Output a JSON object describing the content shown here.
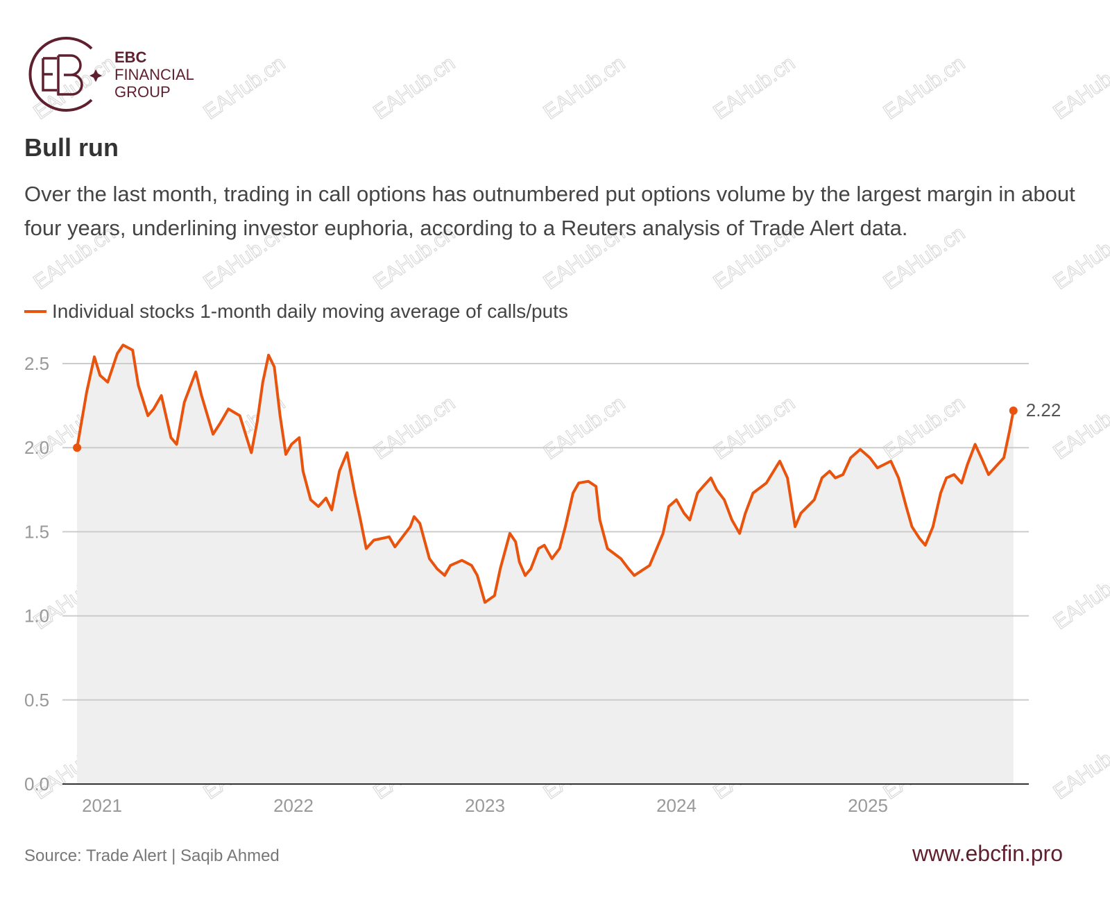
{
  "logo": {
    "line1": "EBC",
    "line2": "FINANCIAL",
    "line3": "GROUP"
  },
  "watermark": "EAHub.cn",
  "footer": {
    "source": "Source: Trade Alert | Saqib Ahmed",
    "url": "www.ebcfin.pro"
  },
  "colors": {
    "line": "#e8530e",
    "fill": "#efefef",
    "grid": "#cccccc",
    "brand": "#5e1f2e"
  },
  "chart_data": {
    "type": "line",
    "title": "Bull run",
    "subtitle": "Over the last month, trading in call options has outnumbered put options volume by the largest margin in about four years, underlining investor euphoria, according to a Reuters analysis of Trade Alert data.",
    "legend": "Individual stocks 1-month daily moving average of calls/puts",
    "xlabel": "",
    "ylabel": "",
    "xlim": [
      2020.87,
      2025.76
    ],
    "ylim": [
      0,
      2.5
    ],
    "y_ticks": [
      {
        "v": 0,
        "label": "0.0"
      },
      {
        "v": 0.5,
        "label": "0.5"
      },
      {
        "v": 1,
        "label": "1.0"
      },
      {
        "v": 1.5,
        "label": "1.5"
      },
      {
        "v": 2,
        "label": "2.0"
      },
      {
        "v": 2.5,
        "label": "2.5"
      }
    ],
    "x_ticks": [
      {
        "v": 2021,
        "label": "2021"
      },
      {
        "v": 2022,
        "label": "2022"
      },
      {
        "v": 2023,
        "label": "2023"
      },
      {
        "v": 2024,
        "label": "2024"
      },
      {
        "v": 2025,
        "label": "2025"
      }
    ],
    "grid": true,
    "end_label": "2.22",
    "series": [
      {
        "name": "Individual stocks 1-month daily moving average of calls/puts",
        "x": [
          2020.87,
          2020.92,
          2020.96,
          2020.99,
          2021.03,
          2021.08,
          2021.11,
          2021.16,
          2021.19,
          2021.24,
          2021.27,
          2021.31,
          2021.36,
          2021.39,
          2021.43,
          2021.49,
          2021.52,
          2021.58,
          2021.62,
          2021.66,
          2021.72,
          2021.78,
          2021.81,
          2021.84,
          2021.87,
          2021.9,
          2021.93,
          2021.96,
          2021.99,
          2022.03,
          2022.05,
          2022.09,
          2022.13,
          2022.17,
          2022.2,
          2022.24,
          2022.28,
          2022.32,
          2022.35,
          2022.38,
          2022.42,
          2022.5,
          2022.53,
          2022.61,
          2022.63,
          2022.66,
          2022.71,
          2022.75,
          2022.79,
          2022.82,
          2022.88,
          2022.93,
          2022.96,
          2023.0,
          2023.05,
          2023.08,
          2023.13,
          2023.16,
          2023.18,
          2023.21,
          2023.24,
          2023.28,
          2023.31,
          2023.35,
          2023.39,
          2023.42,
          2023.46,
          2023.49,
          2023.54,
          2023.58,
          2023.6,
          2023.64,
          2023.71,
          2023.75,
          2023.78,
          2023.86,
          2023.89,
          2023.93,
          2023.96,
          2024.0,
          2024.04,
          2024.07,
          2024.11,
          2024.14,
          2024.18,
          2024.21,
          2024.25,
          2024.29,
          2024.33,
          2024.36,
          2024.4,
          2024.47,
          2024.54,
          2024.58,
          2024.62,
          2024.65,
          2024.72,
          2024.76,
          2024.8,
          2024.83,
          2024.87,
          2024.91,
          2024.96,
          2025.01,
          2025.05,
          2025.12,
          2025.16,
          2025.2,
          2025.23,
          2025.27,
          2025.3,
          2025.34,
          2025.38,
          2025.41,
          2025.45,
          2025.49,
          2025.52,
          2025.56,
          2025.6,
          2025.63,
          2025.71,
          2025.74,
          2025.76
        ],
        "values": [
          2.0,
          2.33,
          2.54,
          2.43,
          2.39,
          2.56,
          2.61,
          2.58,
          2.37,
          2.19,
          2.23,
          2.31,
          2.06,
          2.02,
          2.27,
          2.45,
          2.31,
          2.08,
          2.15,
          2.23,
          2.19,
          1.97,
          2.15,
          2.39,
          2.55,
          2.48,
          2.19,
          1.96,
          2.02,
          2.06,
          1.86,
          1.69,
          1.65,
          1.7,
          1.63,
          1.86,
          1.97,
          1.73,
          1.57,
          1.4,
          1.45,
          1.47,
          1.41,
          1.53,
          1.59,
          1.55,
          1.34,
          1.28,
          1.24,
          1.3,
          1.33,
          1.3,
          1.24,
          1.08,
          1.12,
          1.28,
          1.49,
          1.44,
          1.32,
          1.24,
          1.28,
          1.4,
          1.42,
          1.34,
          1.4,
          1.53,
          1.73,
          1.79,
          1.8,
          1.77,
          1.57,
          1.4,
          1.34,
          1.28,
          1.24,
          1.3,
          1.38,
          1.49,
          1.65,
          1.69,
          1.61,
          1.57,
          1.73,
          1.77,
          1.82,
          1.75,
          1.69,
          1.57,
          1.49,
          1.61,
          1.73,
          1.79,
          1.92,
          1.82,
          1.53,
          1.61,
          1.69,
          1.82,
          1.86,
          1.82,
          1.84,
          1.94,
          1.99,
          1.94,
          1.88,
          1.92,
          1.82,
          1.65,
          1.53,
          1.46,
          1.42,
          1.53,
          1.73,
          1.82,
          1.84,
          1.79,
          1.9,
          2.02,
          1.92,
          1.84,
          1.94,
          2.1,
          2.22
        ]
      }
    ]
  }
}
